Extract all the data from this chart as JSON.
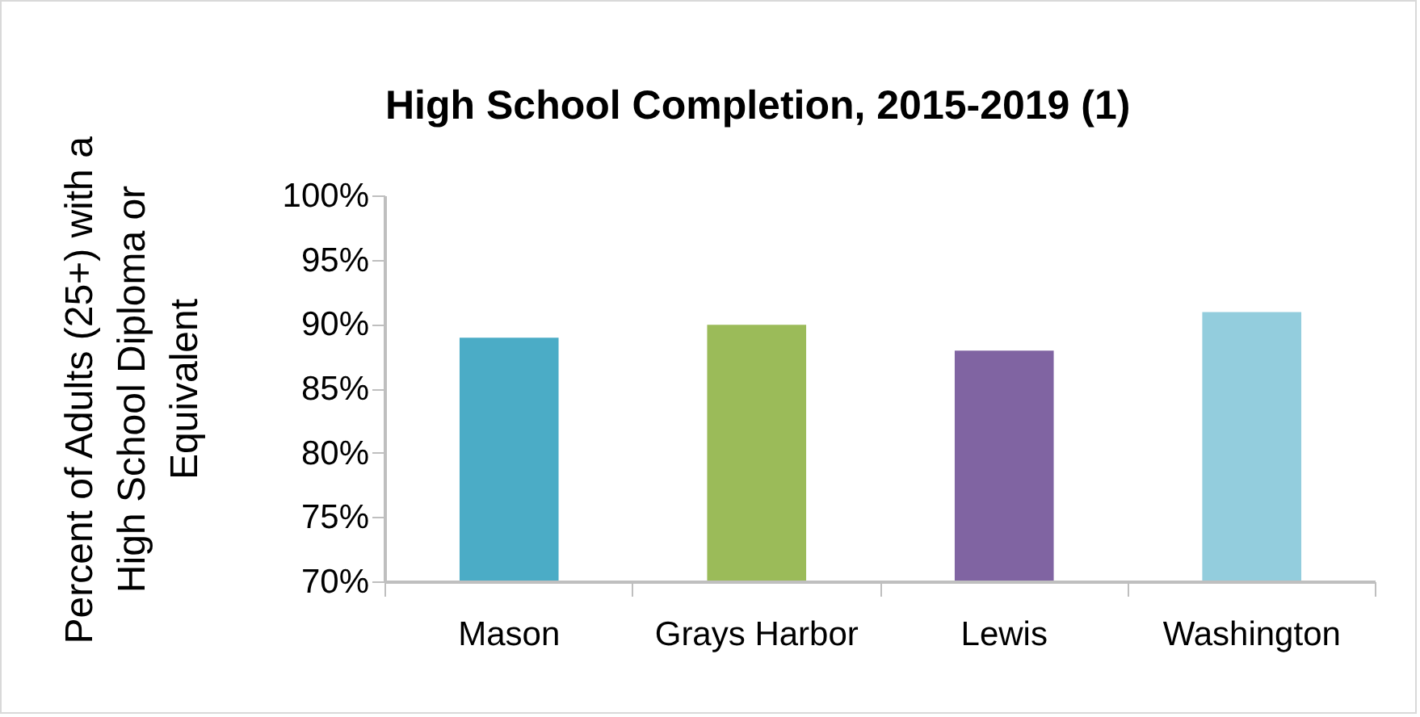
{
  "chart_data": {
    "type": "bar",
    "title": "High School Completion, 2015-2019 (1)",
    "ylabel": "Percent of Adults (25+) with a\nHigh School Diploma or\nEquivalent",
    "categories": [
      "Mason",
      "Grays Harbor",
      "Lewis",
      "Washington"
    ],
    "values": [
      89,
      90,
      88,
      91
    ],
    "colors": [
      "#4bacc6",
      "#9bbb59",
      "#8064a2",
      "#93cddd"
    ],
    "ylim": [
      70,
      100
    ],
    "yticks": [
      {
        "value": 70,
        "label": "70%"
      },
      {
        "value": 75,
        "label": "75%"
      },
      {
        "value": 80,
        "label": "80%"
      },
      {
        "value": 85,
        "label": "85%"
      },
      {
        "value": 90,
        "label": "90%"
      },
      {
        "value": 95,
        "label": "95%"
      },
      {
        "value": 100,
        "label": "100%"
      }
    ],
    "grid": false
  }
}
